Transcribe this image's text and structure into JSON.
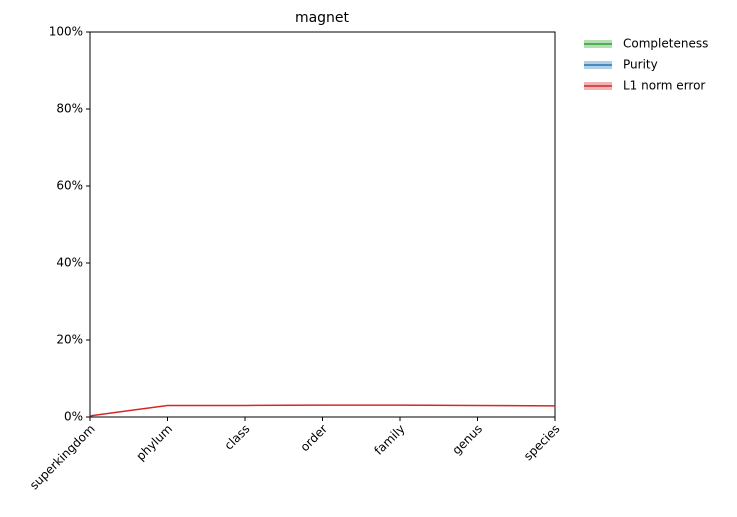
{
  "chart_data": {
    "type": "line",
    "title": "magnet",
    "categories": [
      "superkingdom",
      "phylum",
      "class",
      "order",
      "family",
      "genus",
      "species"
    ],
    "series": [
      {
        "name": "Completeness",
        "color": "#2ca02c",
        "values": [
          null,
          null,
          null,
          null,
          null,
          null,
          null
        ]
      },
      {
        "name": "Purity",
        "color": "#1f77b4",
        "values": [
          null,
          null,
          null,
          null,
          null,
          null,
          null
        ]
      },
      {
        "name": "L1 norm error",
        "color": "#d62728",
        "values": [
          0.3,
          3.0,
          3.0,
          3.1,
          3.1,
          3.0,
          2.9
        ]
      }
    ],
    "ylim": [
      0,
      100
    ],
    "yticks": [
      {
        "value": 0,
        "label": "0%"
      },
      {
        "value": 20,
        "label": "20%"
      },
      {
        "value": 40,
        "label": "40%"
      },
      {
        "value": 60,
        "label": "60%"
      },
      {
        "value": 80,
        "label": "80%"
      },
      {
        "value": 100,
        "label": "100%"
      }
    ],
    "legend": "upper right outside"
  }
}
